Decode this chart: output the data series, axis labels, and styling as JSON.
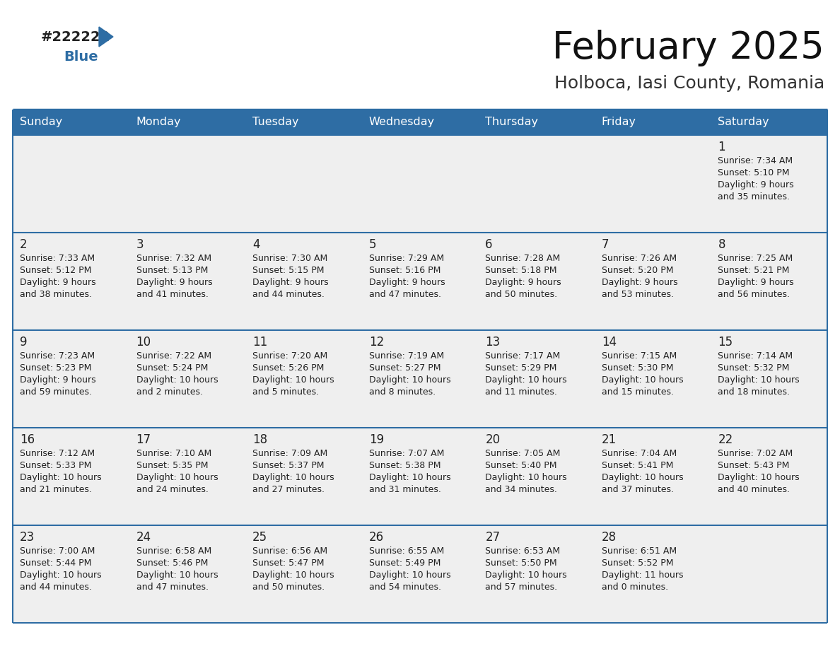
{
  "title": "February 2025",
  "subtitle": "Holboca, Iasi County, Romania",
  "header_bg": "#2E6DA4",
  "header_text": "#FFFFFF",
  "cell_bg": "#EFEFEF",
  "day_headers": [
    "Sunday",
    "Monday",
    "Tuesday",
    "Wednesday",
    "Thursday",
    "Friday",
    "Saturday"
  ],
  "days": [
    {
      "day": 1,
      "col": 6,
      "row": 0,
      "sunrise": "7:34 AM",
      "sunset": "5:10 PM",
      "daylight_line1": "9 hours",
      "daylight_line2": "and 35 minutes."
    },
    {
      "day": 2,
      "col": 0,
      "row": 1,
      "sunrise": "7:33 AM",
      "sunset": "5:12 PM",
      "daylight_line1": "9 hours",
      "daylight_line2": "and 38 minutes."
    },
    {
      "day": 3,
      "col": 1,
      "row": 1,
      "sunrise": "7:32 AM",
      "sunset": "5:13 PM",
      "daylight_line1": "9 hours",
      "daylight_line2": "and 41 minutes."
    },
    {
      "day": 4,
      "col": 2,
      "row": 1,
      "sunrise": "7:30 AM",
      "sunset": "5:15 PM",
      "daylight_line1": "9 hours",
      "daylight_line2": "and 44 minutes."
    },
    {
      "day": 5,
      "col": 3,
      "row": 1,
      "sunrise": "7:29 AM",
      "sunset": "5:16 PM",
      "daylight_line1": "9 hours",
      "daylight_line2": "and 47 minutes."
    },
    {
      "day": 6,
      "col": 4,
      "row": 1,
      "sunrise": "7:28 AM",
      "sunset": "5:18 PM",
      "daylight_line1": "9 hours",
      "daylight_line2": "and 50 minutes."
    },
    {
      "day": 7,
      "col": 5,
      "row": 1,
      "sunrise": "7:26 AM",
      "sunset": "5:20 PM",
      "daylight_line1": "9 hours",
      "daylight_line2": "and 53 minutes."
    },
    {
      "day": 8,
      "col": 6,
      "row": 1,
      "sunrise": "7:25 AM",
      "sunset": "5:21 PM",
      "daylight_line1": "9 hours",
      "daylight_line2": "and 56 minutes."
    },
    {
      "day": 9,
      "col": 0,
      "row": 2,
      "sunrise": "7:23 AM",
      "sunset": "5:23 PM",
      "daylight_line1": "9 hours",
      "daylight_line2": "and 59 minutes."
    },
    {
      "day": 10,
      "col": 1,
      "row": 2,
      "sunrise": "7:22 AM",
      "sunset": "5:24 PM",
      "daylight_line1": "10 hours",
      "daylight_line2": "and 2 minutes."
    },
    {
      "day": 11,
      "col": 2,
      "row": 2,
      "sunrise": "7:20 AM",
      "sunset": "5:26 PM",
      "daylight_line1": "10 hours",
      "daylight_line2": "and 5 minutes."
    },
    {
      "day": 12,
      "col": 3,
      "row": 2,
      "sunrise": "7:19 AM",
      "sunset": "5:27 PM",
      "daylight_line1": "10 hours",
      "daylight_line2": "and 8 minutes."
    },
    {
      "day": 13,
      "col": 4,
      "row": 2,
      "sunrise": "7:17 AM",
      "sunset": "5:29 PM",
      "daylight_line1": "10 hours",
      "daylight_line2": "and 11 minutes."
    },
    {
      "day": 14,
      "col": 5,
      "row": 2,
      "sunrise": "7:15 AM",
      "sunset": "5:30 PM",
      "daylight_line1": "10 hours",
      "daylight_line2": "and 15 minutes."
    },
    {
      "day": 15,
      "col": 6,
      "row": 2,
      "sunrise": "7:14 AM",
      "sunset": "5:32 PM",
      "daylight_line1": "10 hours",
      "daylight_line2": "and 18 minutes."
    },
    {
      "day": 16,
      "col": 0,
      "row": 3,
      "sunrise": "7:12 AM",
      "sunset": "5:33 PM",
      "daylight_line1": "10 hours",
      "daylight_line2": "and 21 minutes."
    },
    {
      "day": 17,
      "col": 1,
      "row": 3,
      "sunrise": "7:10 AM",
      "sunset": "5:35 PM",
      "daylight_line1": "10 hours",
      "daylight_line2": "and 24 minutes."
    },
    {
      "day": 18,
      "col": 2,
      "row": 3,
      "sunrise": "7:09 AM",
      "sunset": "5:37 PM",
      "daylight_line1": "10 hours",
      "daylight_line2": "and 27 minutes."
    },
    {
      "day": 19,
      "col": 3,
      "row": 3,
      "sunrise": "7:07 AM",
      "sunset": "5:38 PM",
      "daylight_line1": "10 hours",
      "daylight_line2": "and 31 minutes."
    },
    {
      "day": 20,
      "col": 4,
      "row": 3,
      "sunrise": "7:05 AM",
      "sunset": "5:40 PM",
      "daylight_line1": "10 hours",
      "daylight_line2": "and 34 minutes."
    },
    {
      "day": 21,
      "col": 5,
      "row": 3,
      "sunrise": "7:04 AM",
      "sunset": "5:41 PM",
      "daylight_line1": "10 hours",
      "daylight_line2": "and 37 minutes."
    },
    {
      "day": 22,
      "col": 6,
      "row": 3,
      "sunrise": "7:02 AM",
      "sunset": "5:43 PM",
      "daylight_line1": "10 hours",
      "daylight_line2": "and 40 minutes."
    },
    {
      "day": 23,
      "col": 0,
      "row": 4,
      "sunrise": "7:00 AM",
      "sunset": "5:44 PM",
      "daylight_line1": "10 hours",
      "daylight_line2": "and 44 minutes."
    },
    {
      "day": 24,
      "col": 1,
      "row": 4,
      "sunrise": "6:58 AM",
      "sunset": "5:46 PM",
      "daylight_line1": "10 hours",
      "daylight_line2": "and 47 minutes."
    },
    {
      "day": 25,
      "col": 2,
      "row": 4,
      "sunrise": "6:56 AM",
      "sunset": "5:47 PM",
      "daylight_line1": "10 hours",
      "daylight_line2": "and 50 minutes."
    },
    {
      "day": 26,
      "col": 3,
      "row": 4,
      "sunrise": "6:55 AM",
      "sunset": "5:49 PM",
      "daylight_line1": "10 hours",
      "daylight_line2": "and 54 minutes."
    },
    {
      "day": 27,
      "col": 4,
      "row": 4,
      "sunrise": "6:53 AM",
      "sunset": "5:50 PM",
      "daylight_line1": "10 hours",
      "daylight_line2": "and 57 minutes."
    },
    {
      "day": 28,
      "col": 5,
      "row": 4,
      "sunrise": "6:51 AM",
      "sunset": "5:52 PM",
      "daylight_line1": "11 hours",
      "daylight_line2": "and 0 minutes."
    }
  ],
  "num_rows": 5,
  "num_cols": 7,
  "header_line_color": "#2E6DA4",
  "row_divider_color": "#2E6DA4",
  "text_color_day": "#222222",
  "text_color_info": "#222222",
  "logo_black": "#222222",
  "logo_blue": "#2E6DA4",
  "logo_triangle_color": "#2E6DA4"
}
